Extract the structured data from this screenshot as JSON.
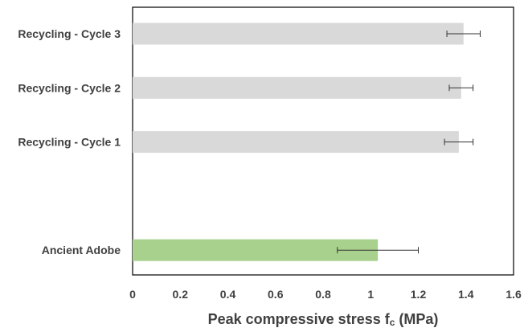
{
  "chart_data": {
    "type": "bar",
    "orientation": "horizontal",
    "categories": [
      "Recycling - Cycle 3",
      "Recycling - Cycle 2",
      "Recycling - Cycle 1",
      "",
      "Ancient Adobe"
    ],
    "values": [
      1.39,
      1.38,
      1.37,
      null,
      1.03
    ],
    "errors_low": [
      1.32,
      1.33,
      1.31,
      null,
      0.86
    ],
    "errors_high": [
      1.46,
      1.43,
      1.43,
      null,
      1.2
    ],
    "bar_colors": [
      "#d9d9d9",
      "#d9d9d9",
      "#d9d9d9",
      "#d9d9d9",
      "#a9d18e"
    ],
    "xlabel": {
      "main": "Peak compressive stress f",
      "subscript": "c",
      "unit": " (MPa)"
    },
    "xlim": [
      0,
      1.6
    ],
    "xticks": [
      "0",
      "0.2",
      "0.4",
      "0.6",
      "0.8",
      "1",
      "1.2",
      "1.4",
      "1.6"
    ],
    "xtick_values": [
      0,
      0.2,
      0.4,
      0.6,
      0.8,
      1.0,
      1.2,
      1.4,
      1.6
    ],
    "grid": false,
    "legend": "none"
  }
}
